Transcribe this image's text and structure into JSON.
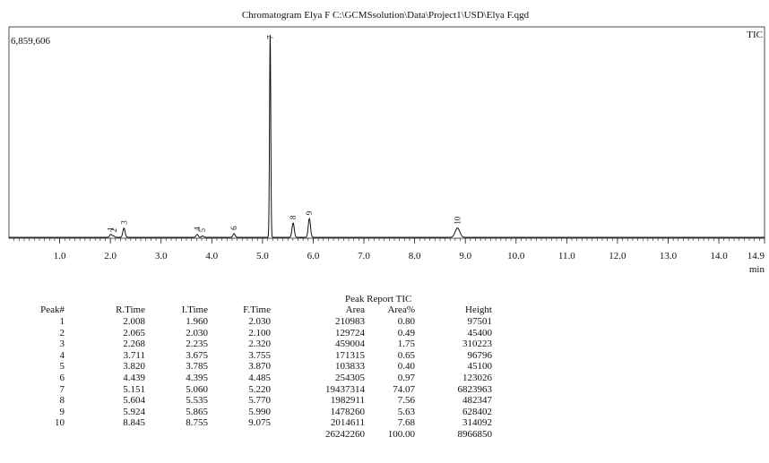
{
  "chart_data": {
    "type": "line",
    "title": "Chromatogram Elya F C:\\GCMSsolution\\Data\\Project1\\USD\\Elya F.qgd",
    "signal_label": "TIC",
    "y_max_label": "6,859,606",
    "y_max": 6859606,
    "xlabel": "min",
    "xlim": [
      0.0,
      14.9
    ],
    "x_ticks": [
      "1.0",
      "2.0",
      "3.0",
      "4.0",
      "5.0",
      "6.0",
      "7.0",
      "8.0",
      "9.0",
      "10.0",
      "11.0",
      "12.0",
      "13.0",
      "14.0",
      "14.9"
    ],
    "series": [
      {
        "peaks": [
          {
            "label": "1",
            "rt": 2.008,
            "height": 97501
          },
          {
            "label": "2",
            "rt": 2.065,
            "height": 45400
          },
          {
            "label": "3",
            "rt": 2.268,
            "height": 310223
          },
          {
            "label": "4",
            "rt": 3.711,
            "height": 96796
          },
          {
            "label": "5",
            "rt": 3.82,
            "height": 45100
          },
          {
            "label": "6",
            "rt": 4.439,
            "height": 123026
          },
          {
            "label": "7",
            "rt": 5.151,
            "height": 6823963
          },
          {
            "label": "8",
            "rt": 5.604,
            "height": 482347
          },
          {
            "label": "9",
            "rt": 5.924,
            "height": 628402
          },
          {
            "label": "10",
            "rt": 8.845,
            "height": 314092
          }
        ]
      }
    ]
  },
  "report": {
    "title": "Peak Report TIC",
    "columns": [
      "Peak#",
      "R.Time",
      "I.Time",
      "F.Time",
      "Area",
      "Area%",
      "Height"
    ],
    "rows": [
      [
        "1",
        "2.008",
        "1.960",
        "2.030",
        "210983",
        "0.80",
        "97501"
      ],
      [
        "2",
        "2.065",
        "2.030",
        "2.100",
        "129724",
        "0.49",
        "45400"
      ],
      [
        "3",
        "2.268",
        "2.235",
        "2.320",
        "459004",
        "1.75",
        "310223"
      ],
      [
        "4",
        "3.711",
        "3.675",
        "3.755",
        "171315",
        "0.65",
        "96796"
      ],
      [
        "5",
        "3.820",
        "3.785",
        "3.870",
        "103833",
        "0.40",
        "45100"
      ],
      [
        "6",
        "4.439",
        "4.395",
        "4.485",
        "254305",
        "0.97",
        "123026"
      ],
      [
        "7",
        "5.151",
        "5.060",
        "5.220",
        "19437314",
        "74.07",
        "6823963"
      ],
      [
        "8",
        "5.604",
        "5.535",
        "5.770",
        "1982911",
        "7.56",
        "482347"
      ],
      [
        "9",
        "5.924",
        "5.865",
        "5.990",
        "1478260",
        "5.63",
        "628402"
      ],
      [
        "10",
        "8.845",
        "8.755",
        "9.075",
        "2014611",
        "7.68",
        "314092"
      ]
    ],
    "totals": [
      "",
      "",
      "",
      "",
      "26242260",
      "100.00",
      "8966850"
    ]
  }
}
